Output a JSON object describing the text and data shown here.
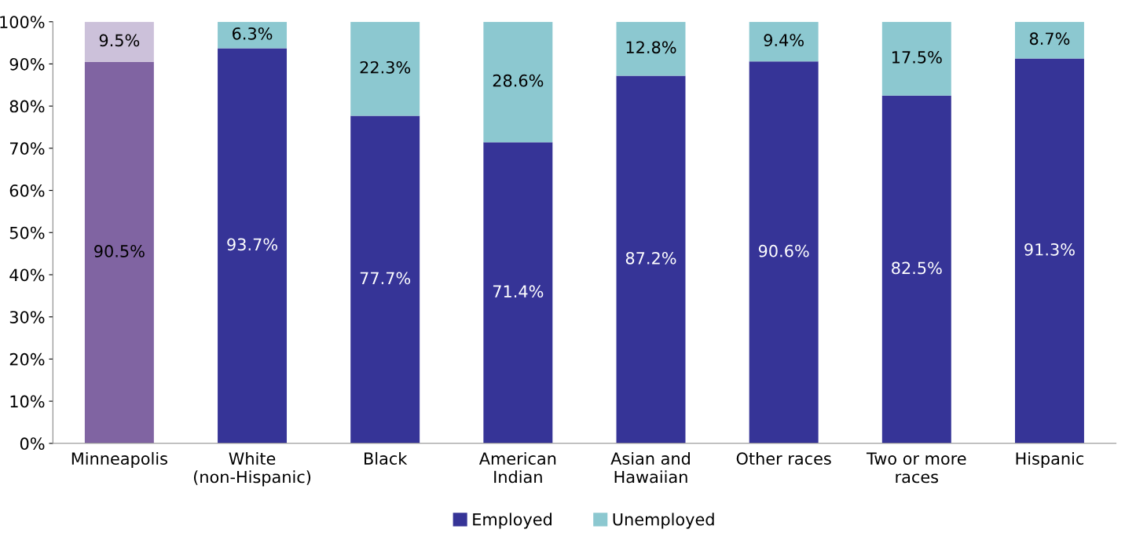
{
  "chart_data": {
    "type": "bar",
    "stacked": true,
    "categories": [
      "Minneapolis",
      "White\n(non-Hispanic)",
      "Black",
      "American\nIndian",
      "Asian and\nHawaiian",
      "Other races",
      "Two or more\nraces",
      "Hispanic"
    ],
    "series": [
      {
        "name": "Employed",
        "color": "#363497",
        "colors": [
          "#8064a2",
          "#363497",
          "#363497",
          "#363497",
          "#363497",
          "#363497",
          "#363497",
          "#363497"
        ],
        "values": [
          90.5,
          93.7,
          77.7,
          71.4,
          87.2,
          90.6,
          82.5,
          91.3
        ],
        "value_labels": [
          "90.5%",
          "93.7%",
          "77.7%",
          "71.4%",
          "87.2%",
          "90.6%",
          "82.5%",
          "91.3%"
        ]
      },
      {
        "name": "Unemployed",
        "color": "#8cc8d0",
        "colors": [
          "#ccc1da",
          "#8cc8d0",
          "#8cc8d0",
          "#8cc8d0",
          "#8cc8d0",
          "#8cc8d0",
          "#8cc8d0",
          "#8cc8d0"
        ],
        "values": [
          9.5,
          6.3,
          22.3,
          28.6,
          12.8,
          9.4,
          17.5,
          8.7
        ],
        "value_labels": [
          "9.5%",
          "6.3%",
          "22.3%",
          "28.6%",
          "12.8%",
          "9.4%",
          "17.5%",
          "8.7%"
        ]
      }
    ],
    "ylim": [
      0,
      100
    ],
    "yticks": [
      {
        "value": 0,
        "label": "0%"
      },
      {
        "value": 10,
        "label": "10%"
      },
      {
        "value": 20,
        "label": "20%"
      },
      {
        "value": 30,
        "label": "30%"
      },
      {
        "value": 40,
        "label": "40%"
      },
      {
        "value": 50,
        "label": "50%"
      },
      {
        "value": 60,
        "label": "60%"
      },
      {
        "value": 70,
        "label": "70%"
      },
      {
        "value": 80,
        "label": "80%"
      },
      {
        "value": 90,
        "label": "90%"
      },
      {
        "value": 100,
        "label": "100%"
      }
    ],
    "legend": "bottom",
    "grid": false
  }
}
